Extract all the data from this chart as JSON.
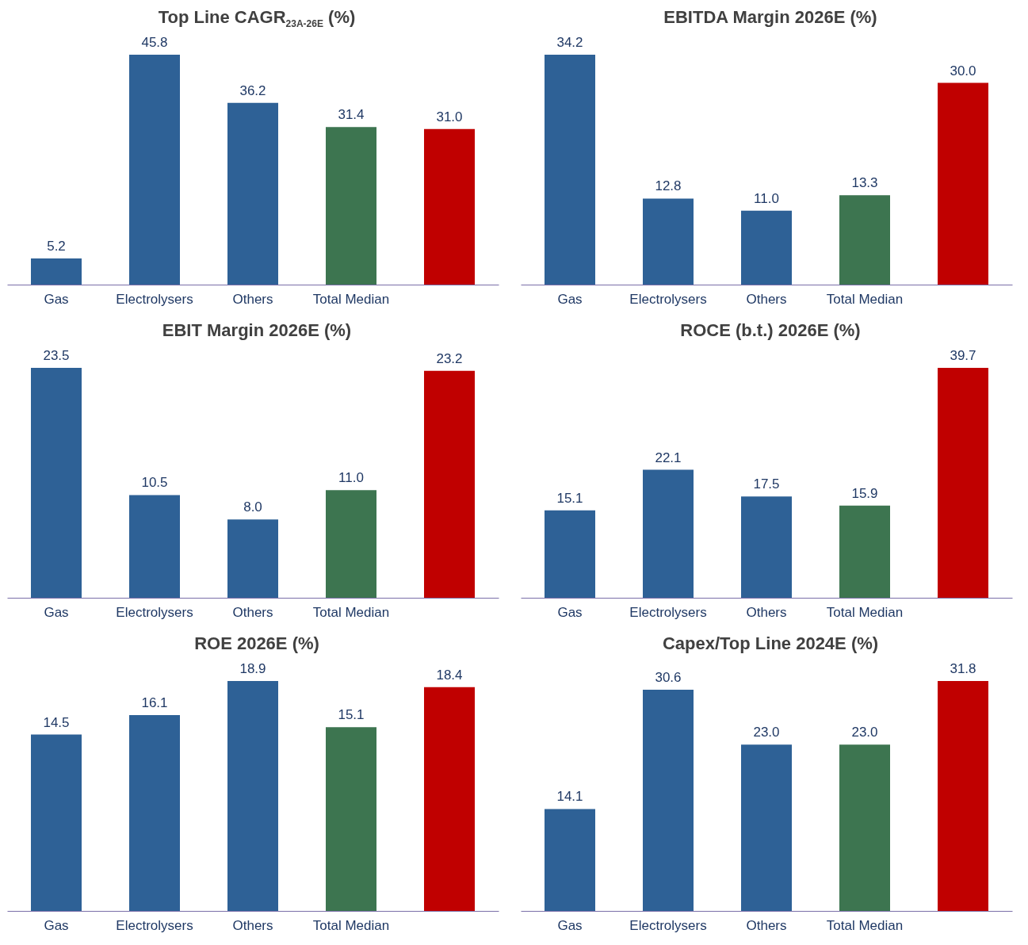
{
  "chart_data": [
    {
      "type": "bar",
      "title": "Top Line CAGR$_{23A-26E}$ (%)",
      "categories": [
        "Gas",
        "Electrolysers",
        "Others",
        "Total Median",
        null
      ],
      "values": [
        5.2,
        45.8,
        36.2,
        31.4,
        31.0
      ],
      "value_labels": [
        "5.2",
        "45.8",
        "36.2",
        "31.4",
        "31.0"
      ],
      "colors": [
        "#2e6196",
        "#2e6196",
        "#2e6196",
        "#3d7550",
        "#c00000"
      ]
    },
    {
      "type": "bar",
      "title": "EBITDA Margin 2026E (%)",
      "categories": [
        "Gas",
        "Electrolysers",
        "Others",
        "Total Median",
        null
      ],
      "values": [
        34.2,
        12.8,
        11.0,
        13.3,
        30.0
      ],
      "value_labels": [
        "34.2",
        "12.8",
        "11.0",
        "13.3",
        "30.0"
      ],
      "colors": [
        "#2e6196",
        "#2e6196",
        "#2e6196",
        "#3d7550",
        "#c00000"
      ]
    },
    {
      "type": "bar",
      "title": "EBIT Margin 2026E (%)",
      "categories": [
        "Gas",
        "Electrolysers",
        "Others",
        "Total Median",
        null
      ],
      "values": [
        23.5,
        10.5,
        8.0,
        11.0,
        23.2
      ],
      "value_labels": [
        "23.5",
        "10.5",
        "8.0",
        "11.0",
        "23.2"
      ],
      "colors": [
        "#2e6196",
        "#2e6196",
        "#2e6196",
        "#3d7550",
        "#c00000"
      ]
    },
    {
      "type": "bar",
      "title": "ROCE (b.t.) 2026E (%)",
      "categories": [
        "Gas",
        "Electrolysers",
        "Others",
        "Total Median",
        null
      ],
      "values": [
        15.1,
        22.1,
        17.5,
        15.9,
        39.7
      ],
      "value_labels": [
        "15.1",
        "22.1",
        "17.5",
        "15.9",
        "39.7"
      ],
      "colors": [
        "#2e6196",
        "#2e6196",
        "#2e6196",
        "#3d7550",
        "#c00000"
      ]
    },
    {
      "type": "bar",
      "title": "ROE 2026E (%)",
      "categories": [
        "Gas",
        "Electrolysers",
        "Others",
        "Total Median",
        null
      ],
      "values": [
        14.5,
        16.1,
        18.9,
        15.1,
        18.4
      ],
      "value_labels": [
        "14.5",
        "16.1",
        "18.9",
        "15.1",
        "18.4"
      ],
      "colors": [
        "#2e6196",
        "#2e6196",
        "#2e6196",
        "#3d7550",
        "#c00000"
      ]
    },
    {
      "type": "bar",
      "title": "Capex/Top Line 2024E (%)",
      "categories": [
        "Gas",
        "Electrolysers",
        "Others",
        "Total Median",
        null
      ],
      "values": [
        14.1,
        30.6,
        23.0,
        23.0,
        31.8
      ],
      "value_labels": [
        "14.1",
        "30.6",
        "23.0",
        "23.0",
        "31.8"
      ],
      "colors": [
        "#2e6196",
        "#2e6196",
        "#2e6196",
        "#3d7550",
        "#c00000"
      ]
    }
  ]
}
